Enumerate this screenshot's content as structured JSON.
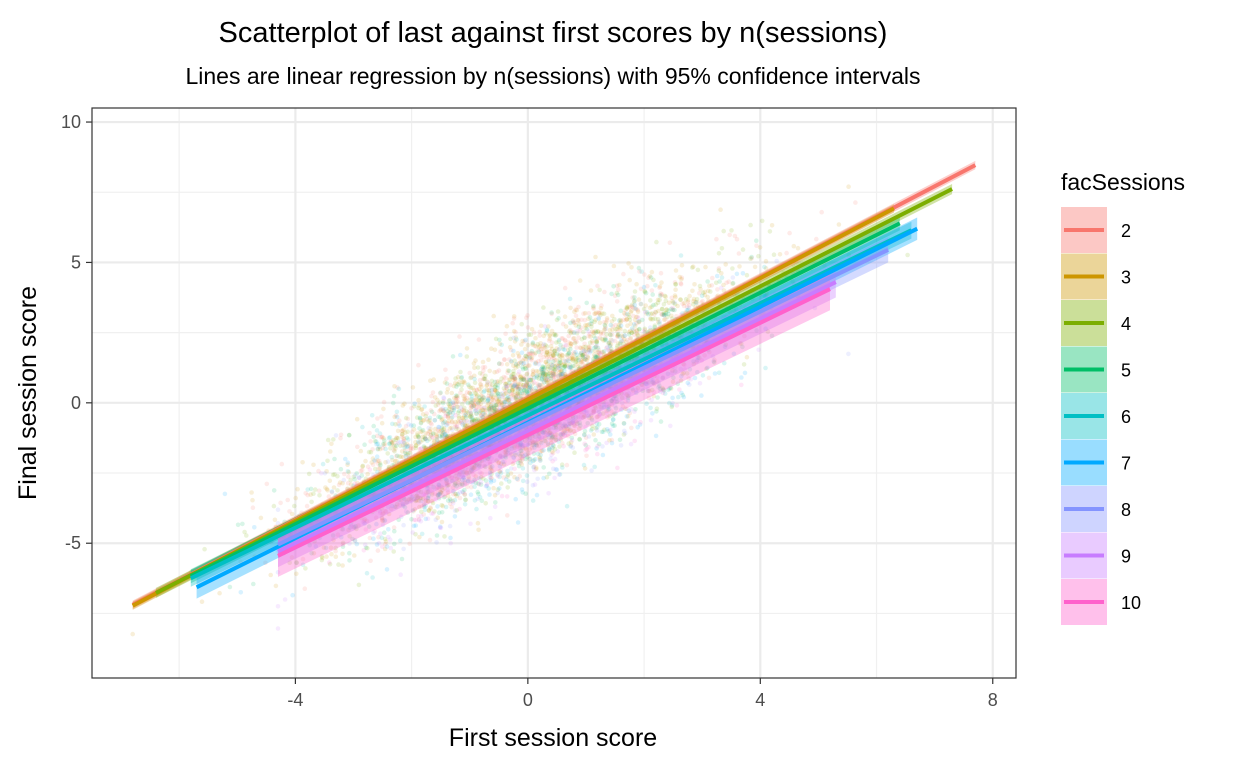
{
  "chart_data": {
    "type": "scatter",
    "title": "Scatterplot of last against first scores by n(sessions)",
    "subtitle": "Lines are linear regression by n(sessions) with 95% confidence intervals",
    "xlabel": "First session score",
    "ylabel": "Final session score",
    "xlim": [
      -7.5,
      8.4
    ],
    "ylim": [
      -9.8,
      10.5
    ],
    "x_ticks": [
      -4,
      0,
      4,
      8
    ],
    "y_ticks": [
      -5,
      0,
      5,
      10
    ],
    "x_tick_labels": [
      "-4",
      "0",
      "4",
      "8"
    ],
    "y_tick_labels": [
      "-5",
      "0",
      "5",
      "10"
    ],
    "grid": true,
    "legend": {
      "title": "facSessions",
      "position": "right"
    },
    "point_alpha": 0.15,
    "series": [
      {
        "name": "2",
        "color": "#F8766D",
        "x_range": [
          -6.8,
          7.7
        ],
        "intercept": 0.15,
        "slope": 1.08,
        "ci_half_width": 0.15
      },
      {
        "name": "3",
        "color": "#CD9600",
        "x_range": [
          -6.8,
          6.3
        ],
        "intercept": 0.12,
        "slope": 1.08,
        "ci_half_width": 0.15
      },
      {
        "name": "4",
        "color": "#7CAE00",
        "x_range": [
          -6.4,
          7.3
        ],
        "intercept": -0.05,
        "slope": 1.05,
        "ci_half_width": 0.18
      },
      {
        "name": "5",
        "color": "#00BE67",
        "x_range": [
          -5.8,
          6.4
        ],
        "intercept": -0.2,
        "slope": 1.03,
        "ci_half_width": 0.25
      },
      {
        "name": "6",
        "color": "#00BFC4",
        "x_range": [
          -5.8,
          6.6
        ],
        "intercept": -0.45,
        "slope": 1.0,
        "ci_half_width": 0.3
      },
      {
        "name": "7",
        "color": "#00A9FF",
        "x_range": [
          -5.7,
          6.7
        ],
        "intercept": -0.7,
        "slope": 1.03,
        "ci_half_width": 0.4
      },
      {
        "name": "8",
        "color": "#8494FF",
        "x_range": [
          -4.3,
          6.2
        ],
        "intercept": -0.75,
        "slope": 1.0,
        "ci_half_width": 0.45
      },
      {
        "name": "9",
        "color": "#C77CFF",
        "x_range": [
          -4.3,
          5.3
        ],
        "intercept": -1.0,
        "slope": 1.0,
        "ci_half_width": 0.55
      },
      {
        "name": "10",
        "color": "#FF61CC",
        "x_range": [
          -4.3,
          5.2
        ],
        "intercept": -1.15,
        "slope": 1.0,
        "ci_half_width": 0.75
      }
    ]
  }
}
